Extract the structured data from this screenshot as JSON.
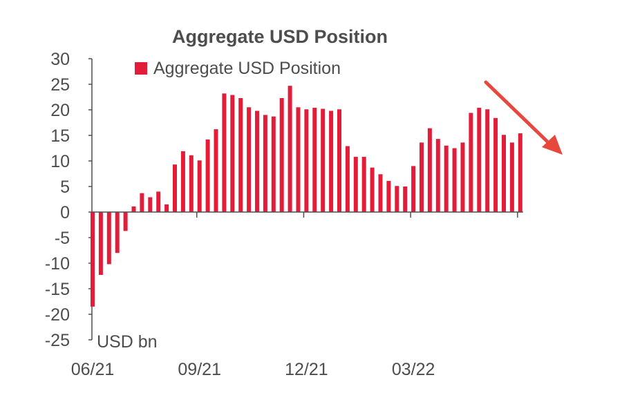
{
  "chart_data": {
    "type": "bar",
    "title": "Aggregate USD Position",
    "legend": [
      "Aggregate USD Position"
    ],
    "legend_position": "top",
    "unit_label": "USD bn",
    "ylim": [
      -25,
      30
    ],
    "yticks": [
      "30",
      "25",
      "20",
      "15",
      "10",
      "5",
      "0",
      "-5",
      "-10",
      "-15",
      "-20",
      "-25"
    ],
    "xtick_labels": [
      "06/21",
      "09/21",
      "12/21",
      "03/22"
    ],
    "grid": false,
    "colors": {
      "bar": "#e11d3a",
      "arrow": "#e8473e",
      "axis": "#4d4d4d"
    },
    "series": [
      {
        "name": "Aggregate USD Position",
        "values": [
          -18.5,
          -12.3,
          -10.2,
          -8.0,
          -3.7,
          1.1,
          3.7,
          2.9,
          4.0,
          1.5,
          9.3,
          11.9,
          11.1,
          10.1,
          14.2,
          16.2,
          23.2,
          22.9,
          22.3,
          20.5,
          19.8,
          19.0,
          18.7,
          22.3,
          24.7,
          20.5,
          20.1,
          20.4,
          20.2,
          19.8,
          20.1,
          12.9,
          10.8,
          10.8,
          8.7,
          7.4,
          6.1,
          5.1,
          5.0,
          9.0,
          13.6,
          16.4,
          14.3,
          13.0,
          12.5,
          13.6,
          19.4,
          20.4,
          20.1,
          18.4,
          15.1,
          13.6,
          15.4
        ]
      }
    ],
    "annotations": [
      {
        "type": "arrow",
        "direction": "down-right",
        "color": "#e8473e"
      }
    ]
  }
}
